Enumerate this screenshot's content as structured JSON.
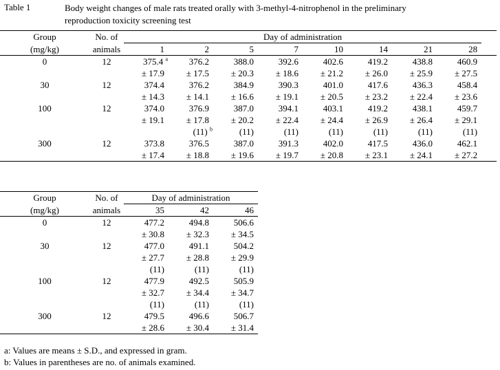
{
  "caption": {
    "label": "Table 1",
    "text": "Body weight changes of male rats treated orally with 3-methyl-4-nitrophenol in the preliminary reproduction toxicity screening test"
  },
  "headers": {
    "group": "Group",
    "group_unit": "(mg/kg)",
    "no": "No. of",
    "no2": "animals",
    "day": "Day of administration"
  },
  "table1": {
    "days": [
      "1",
      "2",
      "5",
      "7",
      "10",
      "14",
      "21",
      "28"
    ],
    "rows": [
      {
        "group": "0",
        "n": "12",
        "mean": [
          "375.4",
          "376.2",
          "388.0",
          "392.6",
          "402.6",
          "419.2",
          "438.8",
          "460.9"
        ],
        "sd": [
          "± 17.9",
          "± 17.5",
          "± 20.3",
          "± 18.6",
          "± 21.2",
          "± 26.0",
          "± 25.9",
          "± 27.5"
        ],
        "nn": null
      },
      {
        "group": "30",
        "n": "12",
        "mean": [
          "374.4",
          "376.2",
          "384.9",
          "390.3",
          "401.0",
          "417.6",
          "436.3",
          "458.4"
        ],
        "sd": [
          "± 14.3",
          "± 14.1",
          "± 16.6",
          "± 19.1",
          "± 20.5",
          "± 23.2",
          "± 22.4",
          "± 23.6"
        ],
        "nn": null
      },
      {
        "group": "100",
        "n": "12",
        "mean": [
          "374.0",
          "376.9",
          "387.0",
          "394.1",
          "403.1",
          "419.2",
          "438.1",
          "459.7"
        ],
        "sd": [
          "± 19.1",
          "± 17.8",
          "± 20.2",
          "± 22.4",
          "± 24.4",
          "± 26.9",
          "± 26.4",
          "± 29.1"
        ],
        "nn": [
          "",
          "(11)",
          "(11)",
          "(11)",
          "(11)",
          "(11)",
          "(11)",
          "(11)"
        ]
      },
      {
        "group": "300",
        "n": "12",
        "mean": [
          "373.8",
          "376.5",
          "387.0",
          "391.3",
          "402.0",
          "417.5",
          "436.0",
          "462.1"
        ],
        "sd": [
          "± 17.4",
          "± 18.8",
          "± 19.6",
          "± 19.7",
          "± 20.8",
          "± 23.1",
          "± 24.1",
          "± 27.2"
        ],
        "nn": null
      }
    ]
  },
  "table2": {
    "days": [
      "35",
      "42",
      "46"
    ],
    "rows": [
      {
        "group": "0",
        "n": "12",
        "mean": [
          "477.2",
          "494.8",
          "506.6"
        ],
        "sd": [
          "± 30.8",
          "± 32.3",
          "± 34.5"
        ],
        "nn": null
      },
      {
        "group": "30",
        "n": "12",
        "mean": [
          "477.0",
          "491.1",
          "504.2"
        ],
        "sd": [
          "± 27.7",
          "± 28.8",
          "± 29.9"
        ],
        "nn": [
          "(11)",
          "(11)",
          "(11)"
        ]
      },
      {
        "group": "100",
        "n": "12",
        "mean": [
          "477.9",
          "492.5",
          "505.9"
        ],
        "sd": [
          "± 32.7",
          "± 34.4",
          "± 34.7"
        ],
        "nn": [
          "(11)",
          "(11)",
          "(11)"
        ]
      },
      {
        "group": "300",
        "n": "12",
        "mean": [
          "479.5",
          "496.6",
          "506.7"
        ],
        "sd": [
          "± 28.6",
          "± 30.4",
          "± 31.4"
        ],
        "nn": null
      }
    ]
  },
  "marks": {
    "a": "a",
    "b": "b"
  },
  "footnotes": [
    "a: Values are means  ± S.D., and expressed in gram.",
    "b: Values in parentheses are no. of animals examined."
  ]
}
